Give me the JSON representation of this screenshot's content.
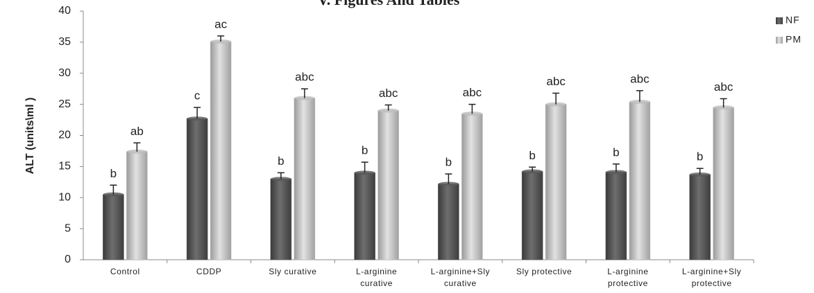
{
  "chart_data": {
    "type": "bar",
    "title": "V.  Figures And Tables",
    "ylabel": "ALT (units\\ml )",
    "categories": [
      [
        "Control"
      ],
      [
        "CDDP"
      ],
      [
        "Sly curative"
      ],
      [
        "L-arginine",
        "curative"
      ],
      [
        "L-arginine+Sly",
        "curative"
      ],
      [
        "Sly  protective"
      ],
      [
        "L-arginine",
        "protective"
      ],
      [
        "L-arginine+Sly",
        "protective"
      ]
    ],
    "series": [
      {
        "name": "NF",
        "color": "#5a5a5a",
        "values": [
          10.5,
          22.7,
          13,
          14,
          12.2,
          14.2,
          14.1,
          13.7
        ],
        "errors": [
          1.5,
          1.8,
          1,
          1.7,
          1.6,
          0.7,
          1.3,
          1
        ],
        "annotations": [
          "b",
          "c",
          "b",
          "b",
          "b",
          "b",
          "b",
          "b"
        ]
      },
      {
        "name": "PM",
        "color": "#bdbdbd",
        "values": [
          17.4,
          35.1,
          26,
          24,
          23.5,
          25,
          25.4,
          24.5
        ],
        "errors": [
          1.4,
          0.9,
          1.5,
          0.9,
          1.5,
          1.8,
          1.8,
          1.4
        ],
        "annotations": [
          "ab",
          "ac",
          "abc",
          "abc",
          "abc",
          "abc",
          "abc",
          "abc"
        ]
      }
    ],
    "ylim": [
      0,
      40
    ],
    "yticks": [
      0,
      5,
      10,
      15,
      20,
      25,
      30,
      35,
      40
    ],
    "legend": "upper right"
  }
}
